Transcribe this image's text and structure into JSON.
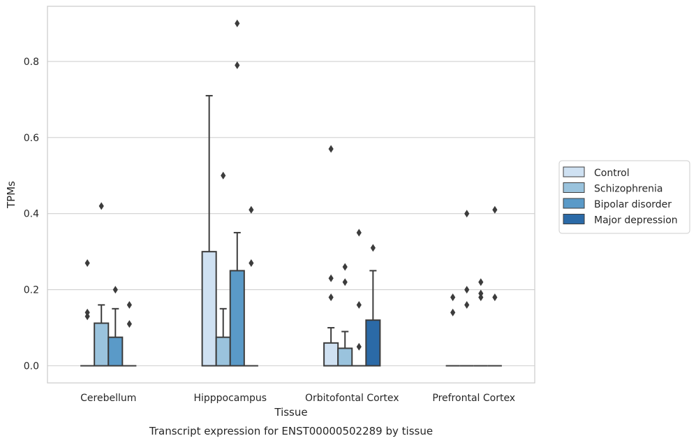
{
  "chart_data": {
    "type": "box",
    "caption": "Transcript expression for ENST00000502289 by tissue",
    "xlabel": "Tissue",
    "ylabel": "TPMs",
    "ylim": [
      -0.045,
      0.945
    ],
    "yticks": [
      0.0,
      0.2,
      0.4,
      0.6,
      0.8
    ],
    "ytick_labels": [
      "0.0",
      "0.2",
      "0.4",
      "0.6",
      "0.8"
    ],
    "grid": "horizontal",
    "legend_position": "right",
    "categories": [
      "Cerebellum",
      "Hipppocampus",
      "Orbitofontal Cortex",
      "Prefrontal Cortex"
    ],
    "series": [
      {
        "name": "Control",
        "color": "#cfe1f2",
        "boxes": [
          {
            "q1": 0,
            "median": 0,
            "q3": 0,
            "whisker_low": 0,
            "whisker_high": 0,
            "outliers": [
              0.13,
              0.14,
              0.27
            ]
          },
          {
            "q1": 0,
            "median": 0,
            "q3": 0.3,
            "whisker_low": 0,
            "whisker_high": 0.71,
            "outliers": []
          },
          {
            "q1": 0,
            "median": 0,
            "q3": 0.06,
            "whisker_low": 0,
            "whisker_high": 0.1,
            "outliers": [
              0.18,
              0.23,
              0.57
            ]
          },
          {
            "q1": 0,
            "median": 0,
            "q3": 0,
            "whisker_low": 0,
            "whisker_high": 0,
            "outliers": [
              0.14,
              0.18
            ]
          }
        ]
      },
      {
        "name": "Schizophrenia",
        "color": "#9ac3dd",
        "boxes": [
          {
            "q1": 0,
            "median": 0,
            "q3": 0.112,
            "whisker_low": 0,
            "whisker_high": 0.16,
            "outliers": [
              0.42
            ]
          },
          {
            "q1": 0,
            "median": 0,
            "q3": 0.075,
            "whisker_low": 0,
            "whisker_high": 0.15,
            "outliers": [
              0.5
            ]
          },
          {
            "q1": 0,
            "median": 0,
            "q3": 0.046,
            "whisker_low": 0,
            "whisker_high": 0.09,
            "outliers": [
              0.22,
              0.26
            ]
          },
          {
            "q1": 0,
            "median": 0,
            "q3": 0,
            "whisker_low": 0,
            "whisker_high": 0,
            "outliers": [
              0.16,
              0.2,
              0.4
            ]
          }
        ]
      },
      {
        "name": "Bipolar disorder",
        "color": "#5a9ac8",
        "boxes": [
          {
            "q1": 0,
            "median": 0,
            "q3": 0.075,
            "whisker_low": 0,
            "whisker_high": 0.15,
            "outliers": [
              0.2
            ]
          },
          {
            "q1": 0,
            "median": 0,
            "q3": 0.25,
            "whisker_low": 0,
            "whisker_high": 0.35,
            "outliers": [
              0.79,
              0.9
            ]
          },
          {
            "q1": 0,
            "median": 0,
            "q3": 0,
            "whisker_low": 0,
            "whisker_high": 0,
            "outliers": [
              0.05,
              0.16,
              0.35
            ]
          },
          {
            "q1": 0,
            "median": 0,
            "q3": 0,
            "whisker_low": 0,
            "whisker_high": 0,
            "outliers": [
              0.18,
              0.19,
              0.22
            ]
          }
        ]
      },
      {
        "name": "Major depression",
        "color": "#2b6aa7",
        "boxes": [
          {
            "q1": 0,
            "median": 0,
            "q3": 0,
            "whisker_low": 0,
            "whisker_high": 0,
            "outliers": [
              0.11,
              0.16
            ]
          },
          {
            "q1": 0,
            "median": 0,
            "q3": 0,
            "whisker_low": 0,
            "whisker_high": 0,
            "outliers": [
              0.27,
              0.41
            ]
          },
          {
            "q1": 0,
            "median": 0,
            "q3": 0.12,
            "whisker_low": 0,
            "whisker_high": 0.25,
            "outliers": [
              0.31
            ]
          },
          {
            "q1": 0,
            "median": 0,
            "q3": 0,
            "whisker_low": 0,
            "whisker_high": 0,
            "outliers": [
              0.18,
              0.41
            ]
          }
        ]
      }
    ]
  }
}
